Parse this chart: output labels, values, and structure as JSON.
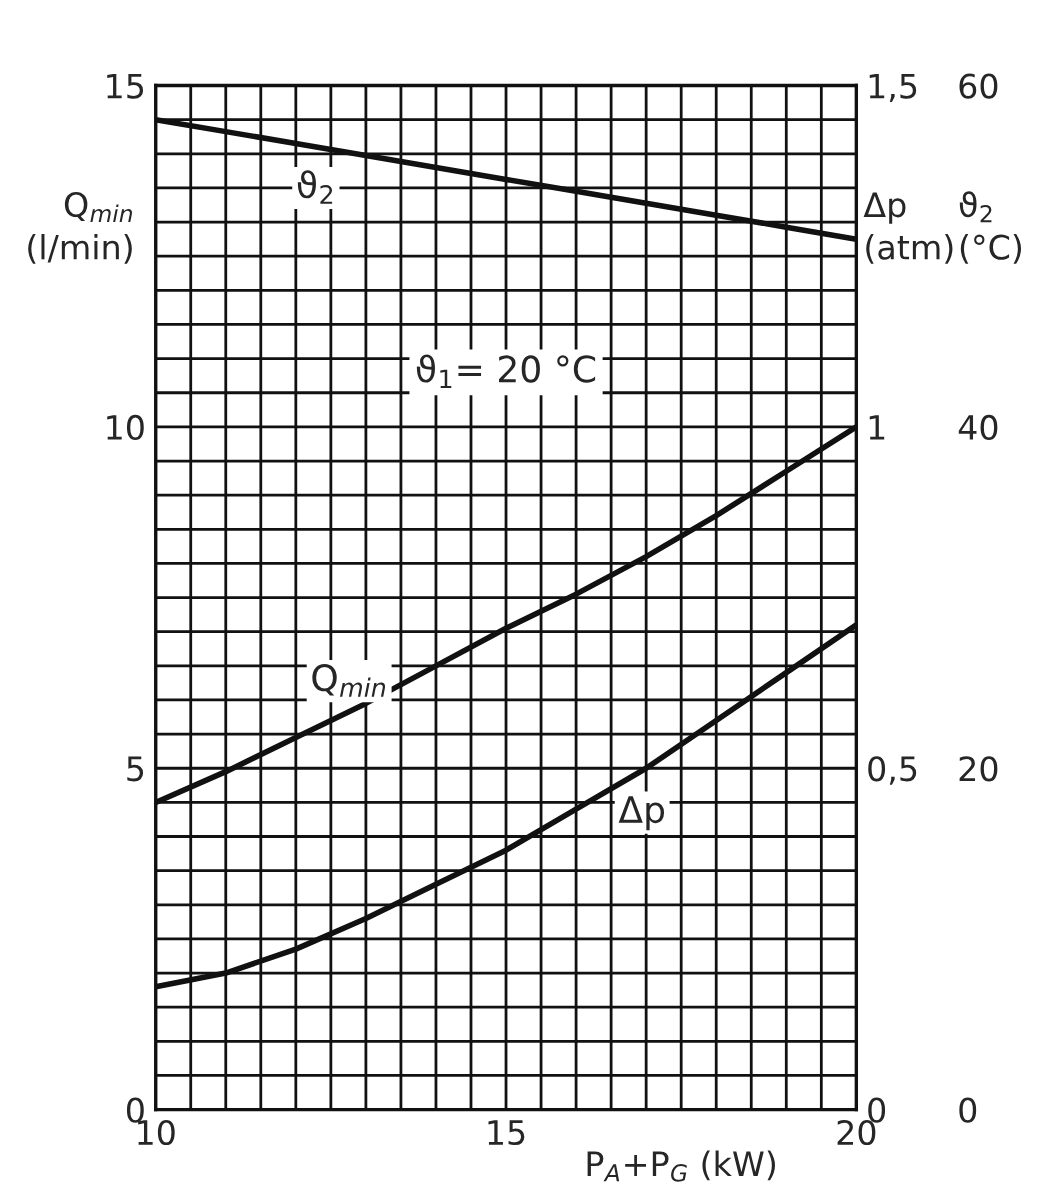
{
  "chart_data": {
    "type": "line",
    "x": [
      10,
      11,
      12,
      13,
      14,
      15,
      16,
      17,
      18,
      19,
      20
    ],
    "series": [
      {
        "name": "Q$_{min}$",
        "color": "#111111",
        "values": [
          4.5,
          4.95,
          5.45,
          5.95,
          6.5,
          7.05,
          7.55,
          8.1,
          8.7,
          9.35,
          10
        ]
      },
      {
        "name": "Δp",
        "color": "#111111",
        "axis": "y2",
        "values": [
          0.18,
          0.2,
          0.235,
          0.28,
          0.33,
          0.38,
          0.44,
          0.5,
          0.57,
          0.64,
          0.71
        ]
      },
      {
        "name": "ϑ$_{2}$",
        "color": "#111111",
        "axis": "y3",
        "values": [
          58,
          57.3,
          56.6,
          55.9,
          55.2,
          54.5,
          53.8,
          53.1,
          52.4,
          51.7,
          51
        ]
      }
    ],
    "xlabel": "P$_{A}$+P$_{G}$ (kW)",
    "ylabel": "Q$_{min}$ (l/min)",
    "y2label": "Δp (atm)",
    "y3label": "ϑ$_{2}$ (°C)",
    "annotations": [
      "ϑ$_{1}$= 20 °C"
    ],
    "xlim": [
      10,
      20
    ],
    "xticks": [
      10,
      {
        "value": 10.5,
        "label": null
      },
      {
        "value": 11,
        "label": null
      },
      {
        "value": 11.5,
        "label": null
      },
      {
        "value": 12,
        "label": null
      },
      {
        "value": 12.5,
        "label": null
      },
      {
        "value": 13,
        "label": null
      },
      {
        "value": 13.5,
        "label": null
      },
      {
        "value": 14,
        "label": null
      },
      {
        "value": 14.5,
        "label": null
      },
      15,
      {
        "value": 15.5,
        "label": null
      },
      {
        "value": 16,
        "label": null
      },
      {
        "value": 16.5,
        "label": null
      },
      {
        "value": 17,
        "label": null
      },
      {
        "value": 17.5,
        "label": null
      },
      {
        "value": 18,
        "label": null
      },
      {
        "value": 18.5,
        "label": null
      },
      {
        "value": 19,
        "label": null
      },
      {
        "value": 19.5,
        "label": null
      },
      20
    ],
    "ylim": [
      0,
      15
    ],
    "yticks": [
      0,
      {
        "value": 0.5,
        "label": null
      },
      {
        "value": 1,
        "label": null
      },
      {
        "value": 1.5,
        "label": null
      },
      {
        "value": 2,
        "label": null
      },
      {
        "value": 2.5,
        "label": null
      },
      {
        "value": 3,
        "label": null
      },
      {
        "value": 3.5,
        "label": null
      },
      {
        "value": 4,
        "label": null
      },
      {
        "value": 4.5,
        "label": null
      },
      5,
      {
        "value": 5.5,
        "label": null
      },
      {
        "value": 6,
        "label": null
      },
      {
        "value": 6.5,
        "label": null
      },
      {
        "value": 7,
        "label": null
      },
      {
        "value": 7.5,
        "label": null
      },
      {
        "value": 8,
        "label": null
      },
      {
        "value": 8.5,
        "label": null
      },
      {
        "value": 9,
        "label": null
      },
      {
        "value": 9.5,
        "label": null
      },
      10,
      {
        "value": 10.5,
        "label": null
      },
      {
        "value": 11,
        "label": null
      },
      {
        "value": 11.5,
        "label": null
      },
      {
        "value": 12,
        "label": null
      },
      {
        "value": 12.5,
        "label": null
      },
      {
        "value": 13,
        "label": null
      },
      {
        "value": 13.5,
        "label": null
      },
      {
        "value": 14,
        "label": null
      },
      {
        "value": 14.5,
        "label": null
      },
      15
    ],
    "y2lim": [
      0,
      1.5
    ],
    "y2ticks": [
      0,
      {
        "value": 0.5,
        "label": "0,5"
      },
      1,
      {
        "value": 1.5,
        "label": "1,5"
      }
    ],
    "y3lim": [
      0,
      60
    ],
    "y3ticks": [
      0,
      20,
      40,
      60
    ],
    "grid": true,
    "legend": false,
    "marker": "none",
    "line_style": "solid"
  }
}
